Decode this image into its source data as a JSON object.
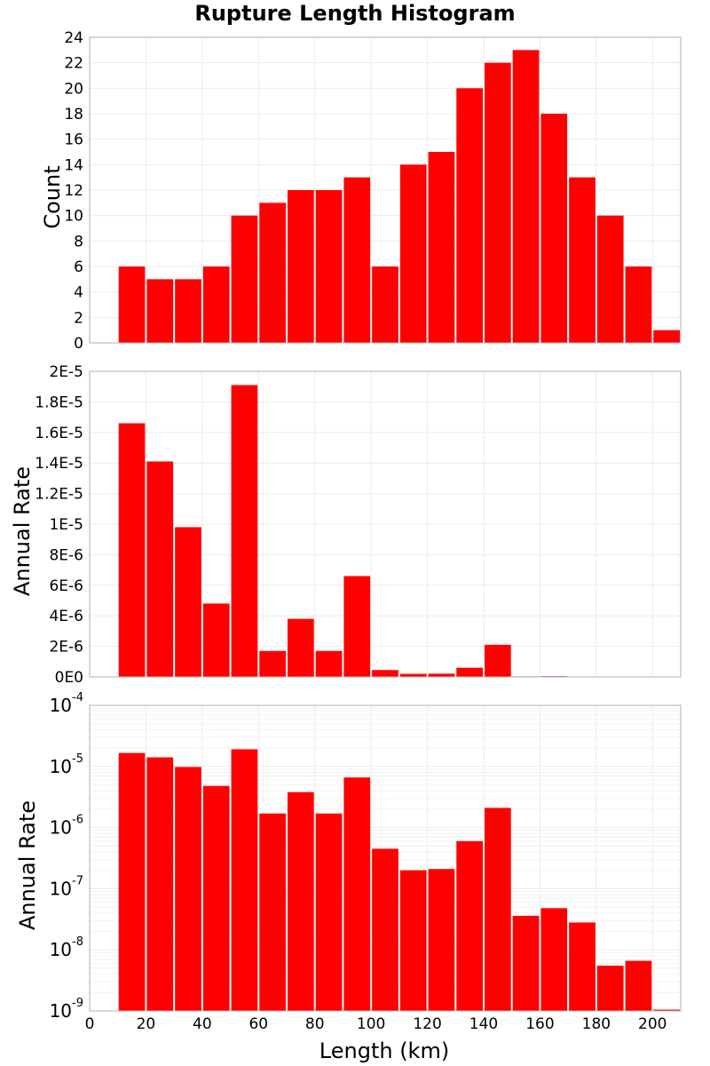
{
  "chart_data": {
    "type": "bar",
    "title": "Rupture Length Histogram",
    "xlabel": "Length (km)",
    "xlim": [
      0,
      210
    ],
    "xticks": [
      0,
      20,
      40,
      60,
      80,
      100,
      120,
      140,
      160,
      180,
      200
    ],
    "bar_color": "#ff0000",
    "bin_width": 10,
    "bin_centers": [
      15,
      25,
      35,
      45,
      55,
      65,
      75,
      85,
      95,
      105,
      115,
      125,
      135,
      145,
      155,
      165,
      175,
      185,
      195,
      205
    ],
    "panels": [
      {
        "ylabel": "Count",
        "scale": "linear",
        "ylim": [
          0,
          24
        ],
        "yticks": [
          0,
          2,
          4,
          6,
          8,
          10,
          12,
          14,
          16,
          18,
          20,
          22,
          24
        ],
        "ytick_labels": [
          "0",
          "2",
          "4",
          "6",
          "8",
          "10",
          "12",
          "14",
          "16",
          "18",
          "20",
          "22",
          "24"
        ],
        "values": [
          6,
          5,
          5,
          6,
          10,
          11,
          12,
          12,
          13,
          6,
          14,
          15,
          20,
          22,
          23,
          18,
          13,
          10,
          6,
          1
        ]
      },
      {
        "ylabel": "Annual Rate",
        "scale": "linear",
        "ylim": [
          0,
          2e-05
        ],
        "yticks": [
          0,
          2e-06,
          4e-06,
          6e-06,
          8e-06,
          1e-05,
          1.2e-05,
          1.4e-05,
          1.6e-05,
          1.8e-05,
          2e-05
        ],
        "ytick_labels": [
          "0E0",
          "2E-6",
          "4E-6",
          "6E-6",
          "8E-6",
          "1E-5",
          "1.2E-5",
          "1.4E-5",
          "1.6E-5",
          "1.8E-5",
          "2E-5"
        ],
        "values": [
          1.66e-05,
          1.41e-05,
          9.8e-06,
          4.8e-06,
          1.91e-05,
          1.7e-06,
          3.8e-06,
          1.7e-06,
          6.6e-06,
          4.5e-07,
          2e-07,
          2.1e-07,
          6e-07,
          2.1e-06,
          3.6e-08,
          4.8e-08,
          2.8e-08,
          5.5e-09,
          6.6e-09,
          1.05e-09
        ]
      },
      {
        "ylabel": "Annual Rate",
        "scale": "log",
        "ylim": [
          1e-09,
          0.0001
        ],
        "yticks": [
          1e-09,
          1e-08,
          1e-07,
          1e-06,
          1e-05,
          0.0001
        ],
        "ytick_labels": [
          {
            "base": "10",
            "exp": "-9"
          },
          {
            "base": "10",
            "exp": "-8"
          },
          {
            "base": "10",
            "exp": "-7"
          },
          {
            "base": "10",
            "exp": "-6"
          },
          {
            "base": "10",
            "exp": "-5"
          },
          {
            "base": "10",
            "exp": "-4"
          }
        ],
        "values": [
          1.66e-05,
          1.41e-05,
          9.8e-06,
          4.8e-06,
          1.91e-05,
          1.7e-06,
          3.8e-06,
          1.7e-06,
          6.6e-06,
          4.5e-07,
          2e-07,
          2.1e-07,
          6e-07,
          2.1e-06,
          3.6e-08,
          4.8e-08,
          2.8e-08,
          5.5e-09,
          6.6e-09,
          1.05e-09
        ]
      }
    ]
  }
}
